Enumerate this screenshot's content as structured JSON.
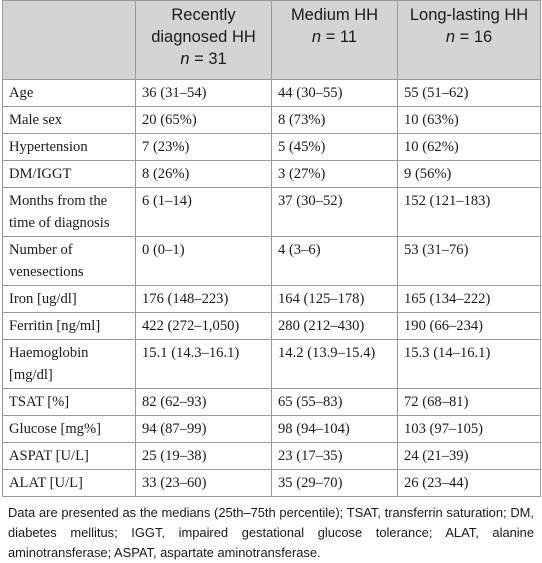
{
  "table": {
    "headers": [
      {
        "label": "",
        "n": ""
      },
      {
        "label": "Recently diagnosed HH",
        "n": "31"
      },
      {
        "label": "Medium HH",
        "n": "11"
      },
      {
        "label": "Long-lasting HH",
        "n": "16"
      }
    ],
    "n_prefix": "n",
    "n_eq": " = ",
    "rows": [
      [
        "Age",
        "36 (31–54)",
        "44 (30–55)",
        "55 (51–62)"
      ],
      [
        "Male sex",
        "20 (65%)",
        "8 (73%)",
        "10 (63%)"
      ],
      [
        "Hypertension",
        "7 (23%)",
        "5 (45%)",
        "10 (62%)"
      ],
      [
        "DM/IGGT",
        "8 (26%)",
        "3 (27%)",
        "9 (56%)"
      ],
      [
        "Months from the time of diagnosis",
        "6 (1–14)",
        "37 (30–52)",
        "152 (121–183)"
      ],
      [
        "Number of venesections",
        "0 (0–1)",
        "4 (3–6)",
        "53 (31–76)"
      ],
      [
        "Iron [ug/dl]",
        "176 (148–223)",
        "164 (125–178)",
        "165 (134–222)"
      ],
      [
        "Ferritin [ng/ml]",
        "422 (272–1,050)",
        "280 (212–430)",
        "190 (66–234)"
      ],
      [
        "Haemoglobin [mg/dl]",
        "15.1 (14.3–16.1)",
        "14.2 (13.9–15.4)",
        "15.3 (14–16.1)"
      ],
      [
        "TSAT [%]",
        "82 (62–93)",
        "65 (55–83)",
        "72 (68–81)"
      ],
      [
        "Glucose [mg%]",
        "94 (87–99)",
        "98 (94–104)",
        "103 (97–105)"
      ],
      [
        "ASPAT [U/L]",
        "25 (19–38)",
        "23 (17–35)",
        "24 (21–39)"
      ],
      [
        "ALAT [U/L]",
        "33 (23–60)",
        "35 (29–70)",
        "26 (23–44)"
      ]
    ]
  },
  "footnote": "Data are presented as the medians (25th–75th percentile); TSAT, transferrin saturation; DM, diabetes mellitus; IGGT, impaired gestational glucose tolerance; ALAT, alanine aminotransferase; ASPAT, aspartate aminotransferase.",
  "colors": {
    "header_bg": "#d4d4d4",
    "border": "#9a9a9a",
    "text": "#1a1a1a"
  }
}
